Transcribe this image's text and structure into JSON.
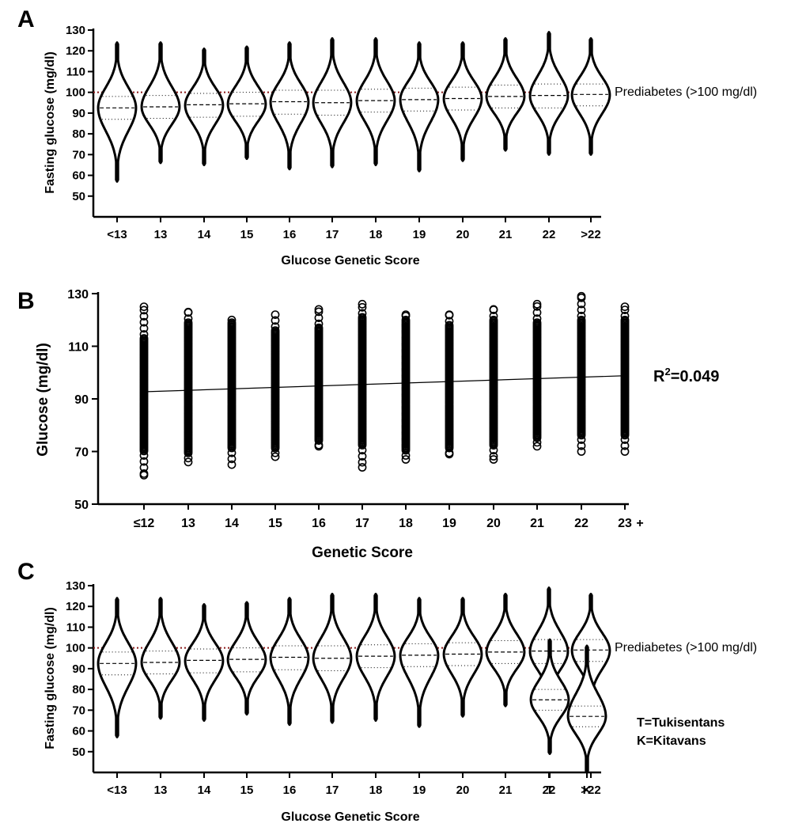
{
  "chart_data": [
    {
      "panel": "A",
      "type": "violin",
      "xlabel": "Glucose Genetic Score",
      "ylabel": "Fasting glucose (mg/dl)",
      "ylim": [
        40,
        130
      ],
      "yticks": [
        50,
        60,
        70,
        80,
        90,
        100,
        110,
        120,
        130
      ],
      "categories": [
        "<13",
        "13",
        "14",
        "15",
        "16",
        "17",
        "18",
        "19",
        "20",
        "21",
        "22",
        ">22"
      ],
      "series": [
        {
          "values": [
            {
              "min": 57,
              "q1": 87,
              "median": 92.5,
              "q3": 98,
              "max": 124
            },
            {
              "min": 66,
              "q1": 87.5,
              "median": 93,
              "q3": 98.5,
              "max": 124
            },
            {
              "min": 65,
              "q1": 88,
              "median": 94,
              "q3": 99.5,
              "max": 121
            },
            {
              "min": 68,
              "q1": 88.5,
              "median": 94.5,
              "q3": 100,
              "max": 122
            },
            {
              "min": 63,
              "q1": 89.5,
              "median": 95.5,
              "q3": 101,
              "max": 124
            },
            {
              "min": 64,
              "q1": 89,
              "median": 95,
              "q3": 101,
              "max": 126
            },
            {
              "min": 65,
              "q1": 90.5,
              "median": 96,
              "q3": 101.5,
              "max": 126
            },
            {
              "min": 62,
              "q1": 91,
              "median": 96.5,
              "q3": 102,
              "max": 124
            },
            {
              "min": 67,
              "q1": 91.5,
              "median": 97,
              "q3": 102.5,
              "max": 124
            },
            {
              "min": 72,
              "q1": 92.5,
              "median": 98,
              "q3": 103.5,
              "max": 126
            },
            {
              "min": 70,
              "q1": 92.5,
              "median": 98.5,
              "q3": 104,
              "max": 129
            },
            {
              "min": 70,
              "q1": 93.5,
              "median": 99,
              "q3": 104,
              "max": 126
            }
          ]
        }
      ],
      "reference_line": {
        "y": 100,
        "label": "Prediabetes (>100 mg/dl)",
        "color": "#8b1a1a"
      }
    },
    {
      "panel": "B",
      "type": "scatter",
      "xlabel": "Genetic Score",
      "ylabel": "Glucose (mg/dl)",
      "ylim": [
        50,
        130
      ],
      "yticks": [
        50,
        70,
        90,
        110,
        130
      ],
      "categories": [
        "≤12",
        "13",
        "14",
        "15",
        "16",
        "17",
        "18",
        "19",
        "20",
        "21",
        "22",
        "23"
      ],
      "category_suffix": {
        "index": 11,
        "text": "+"
      },
      "columns": [
        {
          "min": 61,
          "max": 125,
          "dense_low": 70,
          "dense_high": 113
        },
        {
          "min": 66,
          "max": 123,
          "dense_low": 69,
          "dense_high": 119
        },
        {
          "min": 65,
          "max": 120,
          "dense_low": 71,
          "dense_high": 119
        },
        {
          "min": 68,
          "max": 122,
          "dense_low": 71,
          "dense_high": 116
        },
        {
          "min": 72,
          "max": 124,
          "dense_low": 74,
          "dense_high": 117
        },
        {
          "min": 64,
          "max": 126,
          "dense_low": 72,
          "dense_high": 121
        },
        {
          "min": 67,
          "max": 122,
          "dense_low": 70,
          "dense_high": 120
        },
        {
          "min": 69,
          "max": 122,
          "dense_low": 71,
          "dense_high": 118
        },
        {
          "min": 67,
          "max": 124,
          "dense_low": 72,
          "dense_high": 120
        },
        {
          "min": 72,
          "max": 126,
          "dense_low": 75,
          "dense_high": 119
        },
        {
          "min": 70,
          "max": 129,
          "dense_low": 76,
          "dense_high": 120
        },
        {
          "min": 70,
          "max": 125,
          "dense_low": 76,
          "dense_high": 120
        }
      ],
      "regression": {
        "y_start": 92.7,
        "y_end": 98.8
      },
      "r2_label": {
        "base": "R",
        "sup": "2",
        "rest": "=0.049"
      }
    },
    {
      "panel": "C",
      "type": "violin",
      "xlabel": "Glucose Genetic Score",
      "ylabel": "Fasting glucose (mg/dl)",
      "ylim": [
        40,
        130
      ],
      "yticks": [
        50,
        60,
        70,
        80,
        90,
        100,
        110,
        120,
        130
      ],
      "categories": [
        "<13",
        "13",
        "14",
        "15",
        "16",
        "17",
        "18",
        "19",
        "20",
        "21",
        "22",
        ">22",
        "T",
        "K"
      ],
      "series": [
        {
          "values": [
            {
              "min": 57,
              "q1": 87,
              "median": 92.5,
              "q3": 98,
              "max": 124
            },
            {
              "min": 66,
              "q1": 87.5,
              "median": 93,
              "q3": 98.5,
              "max": 124
            },
            {
              "min": 65,
              "q1": 88,
              "median": 94,
              "q3": 99.5,
              "max": 121
            },
            {
              "min": 68,
              "q1": 88.5,
              "median": 94.5,
              "q3": 100,
              "max": 122
            },
            {
              "min": 63,
              "q1": 89.5,
              "median": 95.5,
              "q3": 101,
              "max": 124
            },
            {
              "min": 64,
              "q1": 89,
              "median": 95,
              "q3": 101,
              "max": 126
            },
            {
              "min": 65,
              "q1": 90.5,
              "median": 96,
              "q3": 101.5,
              "max": 126
            },
            {
              "min": 62,
              "q1": 91,
              "median": 96.5,
              "q3": 102,
              "max": 124
            },
            {
              "min": 67,
              "q1": 91.5,
              "median": 97,
              "q3": 102.5,
              "max": 124
            },
            {
              "min": 72,
              "q1": 92.5,
              "median": 98,
              "q3": 103.5,
              "max": 126
            },
            {
              "min": 70,
              "q1": 92.5,
              "median": 98.5,
              "q3": 104,
              "max": 129
            },
            {
              "min": 70,
              "q1": 93.5,
              "median": 99,
              "q3": 104,
              "max": 126
            },
            {
              "min": 49,
              "q1": 70,
              "median": 75,
              "q3": 80,
              "max": 104
            },
            {
              "min": 40,
              "q1": 62,
              "median": 67,
              "q3": 72,
              "max": 101
            }
          ]
        }
      ],
      "reference_line": {
        "y": 100,
        "label": "Prediabetes (>100 mg/dl)",
        "color": "#8b1a1a"
      },
      "legend_notes": [
        "T=Tukisentans",
        "K=Kitavans"
      ]
    }
  ]
}
